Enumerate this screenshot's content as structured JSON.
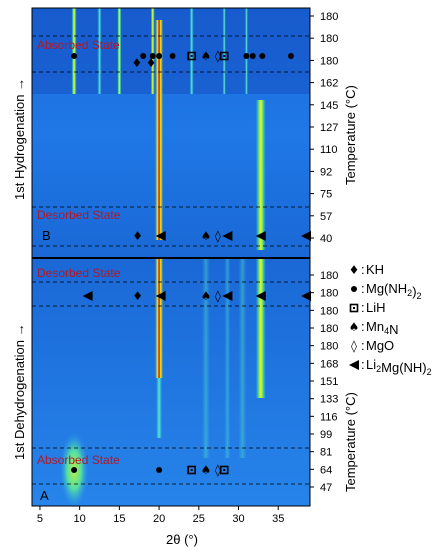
{
  "chart_data": {
    "type": "heatmap",
    "description_kind": "in-situ XRD contour map (2θ vs. time/temperature)",
    "xlabel": "2θ (°)",
    "x_ticks": [
      5,
      10,
      15,
      20,
      25,
      30,
      35
    ],
    "xlim": [
      4,
      39
    ],
    "ylabel": "Temperature (°C)",
    "panels": [
      {
        "label": "B",
        "ylabel_left": "1st Hydrogenation →",
        "temp_ticks": [
          "180",
          "180",
          "180",
          "162",
          "145",
          "127",
          "110",
          "92",
          "75",
          "57",
          "40"
        ],
        "states": [
          {
            "text": "Absorbed State",
            "position": "top"
          },
          {
            "text": "Desorbed State",
            "position": "bottom"
          }
        ],
        "marker_rows": [
          {
            "state": "Absorbed",
            "markers": [
              {
                "x": 9.3,
                "symbol": "Mg(NH2)2"
              },
              {
                "x": 17.2,
                "symbol": "KH"
              },
              {
                "x": 18.0,
                "symbol": "Mg(NH2)2"
              },
              {
                "x": 19.0,
                "symbol": "KH"
              },
              {
                "x": 19.2,
                "symbol": "Mg(NH2)2"
              },
              {
                "x": 20.0,
                "symbol": "Mg(NH2)2"
              },
              {
                "x": 21.7,
                "symbol": "Mg(NH2)2"
              },
              {
                "x": 24.1,
                "symbol": "LiH"
              },
              {
                "x": 25.9,
                "symbol": "Mn4N"
              },
              {
                "x": 27.4,
                "symbol": "MgO"
              },
              {
                "x": 28.2,
                "symbol": "LiH"
              },
              {
                "x": 31.0,
                "symbol": "Mg(NH2)2"
              },
              {
                "x": 31.8,
                "symbol": "Mg(NH2)2"
              },
              {
                "x": 33.0,
                "symbol": "Mg(NH2)2"
              },
              {
                "x": 36.6,
                "symbol": "Mg(NH2)2"
              }
            ]
          },
          {
            "state": "Desorbed",
            "markers": [
              {
                "x": 17.3,
                "symbol": "KH"
              },
              {
                "x": 20.2,
                "symbol": "Li2Mg(NH)2"
              },
              {
                "x": 25.9,
                "symbol": "Mn4N"
              },
              {
                "x": 27.4,
                "symbol": "MgO"
              },
              {
                "x": 28.6,
                "symbol": "Li2Mg(NH)2"
              },
              {
                "x": 32.8,
                "symbol": "Li2Mg(NH)2"
              },
              {
                "x": 38.5,
                "symbol": "Li2Mg(NH)2"
              }
            ]
          }
        ]
      },
      {
        "label": "A",
        "ylabel_left": "1st Dehydrogenation →",
        "temp_ticks": [
          "180",
          "180",
          "180",
          "180",
          "180",
          "168",
          "151",
          "133",
          "116",
          "99",
          "81",
          "64",
          "47"
        ],
        "states": [
          {
            "text": "Desorbed State",
            "position": "top"
          },
          {
            "text": "Absorbed State",
            "position": "bottom"
          }
        ],
        "marker_rows": [
          {
            "state": "Desorbed",
            "markers": [
              {
                "x": 11.0,
                "symbol": "Li2Mg(NH)2"
              },
              {
                "x": 17.3,
                "symbol": "KH"
              },
              {
                "x": 20.2,
                "symbol": "Li2Mg(NH)2"
              },
              {
                "x": 25.9,
                "symbol": "Mn4N"
              },
              {
                "x": 27.4,
                "symbol": "MgO"
              },
              {
                "x": 28.6,
                "symbol": "Li2Mg(NH)2"
              },
              {
                "x": 32.8,
                "symbol": "Li2Mg(NH)2"
              },
              {
                "x": 38.5,
                "symbol": "Li2Mg(NH)2"
              }
            ]
          },
          {
            "state": "Absorbed",
            "markers": [
              {
                "x": 9.3,
                "symbol": "Mg(NH2)2"
              },
              {
                "x": 20.0,
                "symbol": "Mg(NH2)2"
              },
              {
                "x": 24.1,
                "symbol": "LiH"
              },
              {
                "x": 25.9,
                "symbol": "Mn4N"
              },
              {
                "x": 27.4,
                "symbol": "MgO"
              },
              {
                "x": 28.2,
                "symbol": "LiH"
              }
            ]
          }
        ]
      }
    ],
    "legend": [
      {
        "symbol": "♦",
        "label": "KH"
      },
      {
        "symbol": "●",
        "label": "Mg(NH2)2"
      },
      {
        "symbol": "¤",
        "label": "LiH"
      },
      {
        "symbol": "♠",
        "label": "Mn4N"
      },
      {
        "symbol": "◊",
        "label": "MgO"
      },
      {
        "symbol": "◀",
        "label": "Li2Mg(NH)2"
      }
    ],
    "legend_placement": "right, beside lower panel",
    "intense_reflections_2theta": [
      9.3,
      12.5,
      15.0,
      19.2,
      20.0,
      24.1,
      28.2,
      32.8
    ],
    "colormap": [
      "#0a1fa8",
      "#1f8cff",
      "#28e0d8",
      "#7cf060",
      "#f0f020",
      "#ff7a10",
      "#d01010"
    ]
  }
}
